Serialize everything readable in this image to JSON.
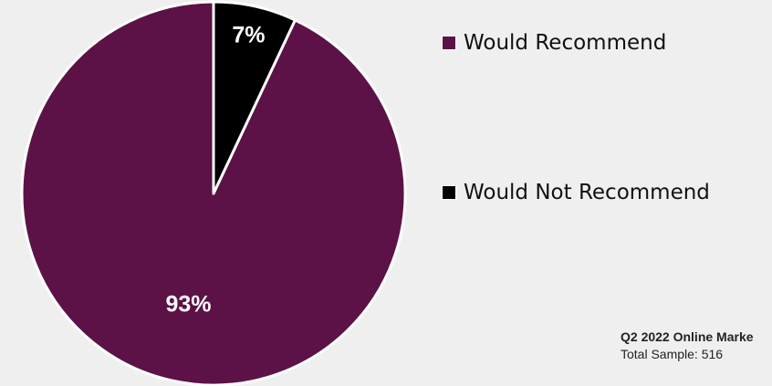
{
  "chart_data": {
    "type": "pie",
    "slices": [
      {
        "name": "Would Recommend",
        "value": 93,
        "label": "93%",
        "color": "#5c1246",
        "label_color": "#ffffff"
      },
      {
        "name": "Would Not Recommend",
        "value": 7,
        "label": "7%",
        "color": "#000000",
        "label_color": "#ffffff"
      }
    ],
    "start_angle": "12 o'clock",
    "direction": "counter-clockwise",
    "slice_border_color": "#ffffff",
    "legend_position": "right"
  },
  "legend": {
    "items": [
      {
        "label": "Would Recommend",
        "color": "#5c1246"
      },
      {
        "label": "Would Not Recommend",
        "color": "#000000"
      }
    ]
  },
  "footnote": {
    "title": "Q2 2022 Online Marke",
    "sample": "Total Sample: 516"
  }
}
